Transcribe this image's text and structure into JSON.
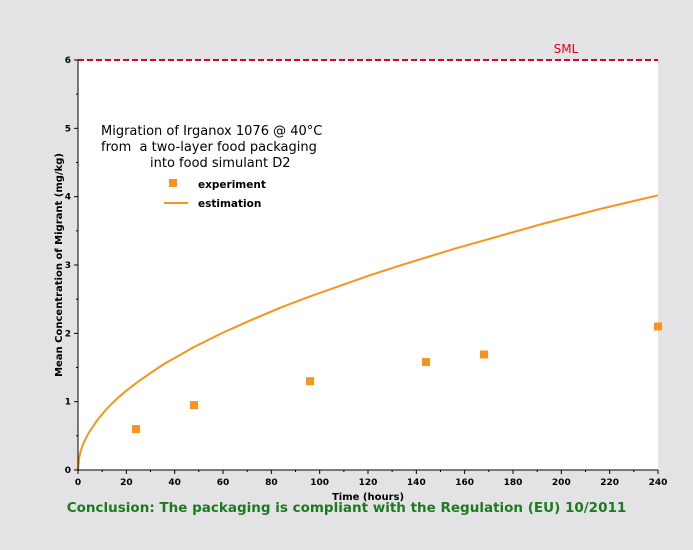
{
  "conclusion": "Conclusion: The packaging is compliant with the Regulation (EU) 10/2011",
  "chart_data": {
    "type": "scatter",
    "title_lines": [
      "Migration of Irganox 1076 @ 40°C",
      "from  a two-layer food packaging",
      "into food simulant D2"
    ],
    "xlabel": "Time (hours)",
    "ylabel": "Mean Concentration of Migrant (mg/kg)",
    "xlim": [
      0,
      240
    ],
    "ylim": [
      0,
      6
    ],
    "x_ticks": [
      0,
      20,
      40,
      60,
      80,
      100,
      120,
      140,
      160,
      180,
      200,
      220,
      240
    ],
    "y_ticks": [
      0,
      1,
      2,
      3,
      4,
      5,
      6
    ],
    "grid": false,
    "legend_position": "top-left",
    "series": [
      {
        "name": "experiment",
        "kind": "points",
        "color": "#f7941d",
        "x": [
          24,
          48,
          96,
          144,
          168,
          240
        ],
        "y": [
          0.6,
          0.95,
          1.3,
          1.58,
          1.69,
          2.1
        ]
      },
      {
        "name": "estimation",
        "kind": "line",
        "color": "#f7941d",
        "x": [
          0,
          0.5,
          1,
          2,
          4,
          8,
          12,
          16,
          20,
          24,
          30,
          36,
          42,
          48,
          60,
          72,
          84,
          96,
          108,
          120,
          132,
          144,
          156,
          168,
          180,
          192,
          204,
          216,
          228,
          240
        ],
        "y": [
          0,
          0.18,
          0.26,
          0.37,
          0.52,
          0.73,
          0.9,
          1.04,
          1.16,
          1.27,
          1.42,
          1.56,
          1.68,
          1.8,
          2.01,
          2.2,
          2.38,
          2.54,
          2.69,
          2.84,
          2.98,
          3.11,
          3.24,
          3.36,
          3.48,
          3.6,
          3.71,
          3.82,
          3.92,
          4.02
        ]
      }
    ],
    "reference_line": {
      "label": "SML",
      "y": 6,
      "color": "#e0001b"
    }
  }
}
